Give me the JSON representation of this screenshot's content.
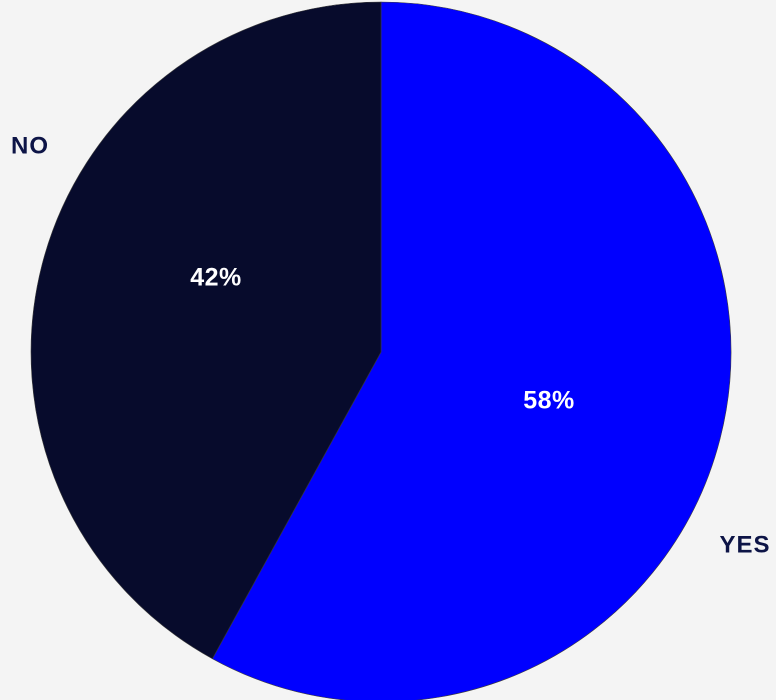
{
  "chart_data": {
    "type": "pie",
    "title": "",
    "slices": [
      {
        "label": "YES",
        "value": 58,
        "value_label": "58%",
        "color": "#0000ff"
      },
      {
        "label": "NO",
        "value": 42,
        "value_label": "42%",
        "color": "#070b2c"
      }
    ],
    "start_angle_deg": 0,
    "direction": "clockwise",
    "label_color": "#0d1446",
    "value_label_color": "#ffffff",
    "background": "#f4f4f4",
    "legend": "none"
  }
}
